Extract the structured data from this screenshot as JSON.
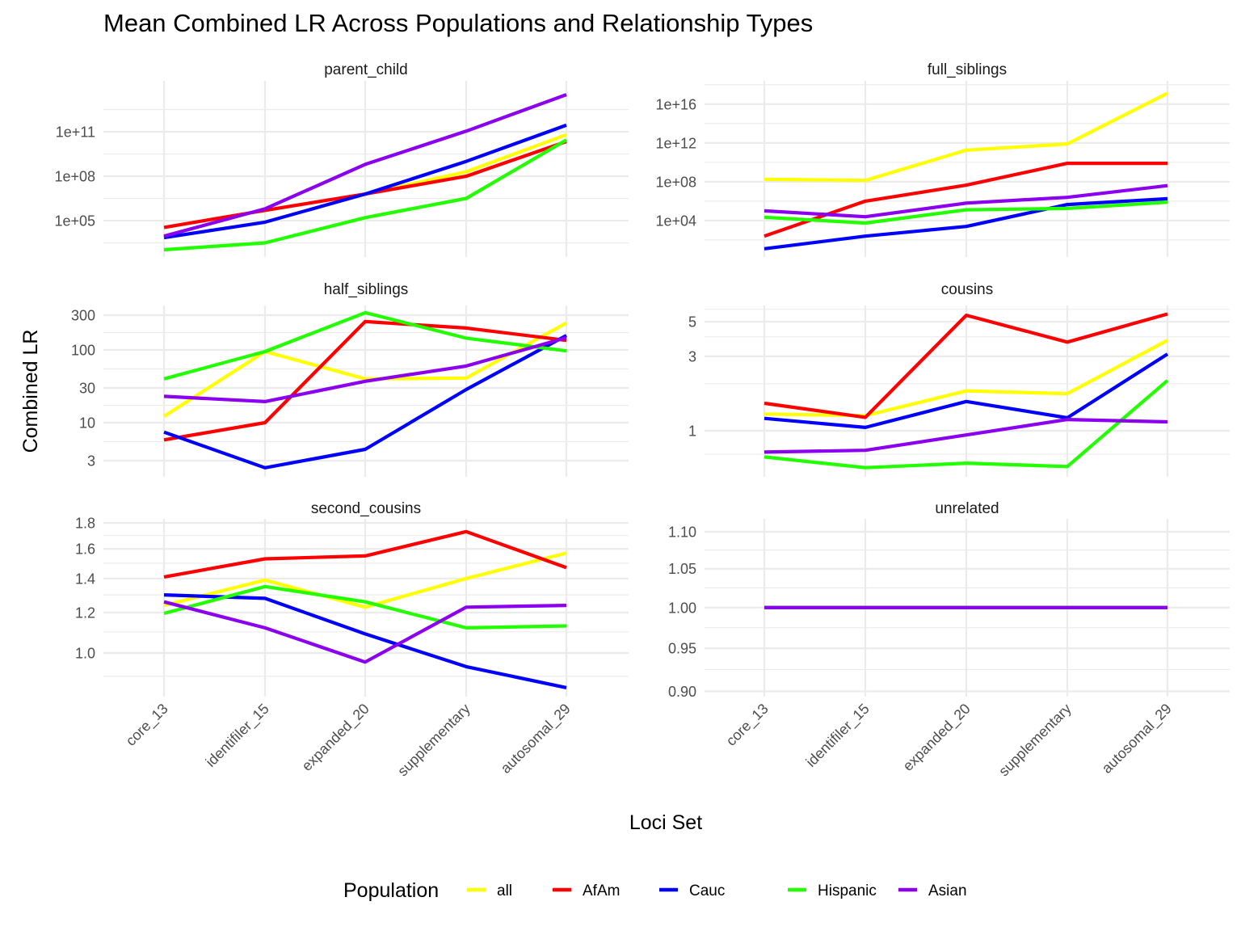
{
  "chart_data": {
    "type": "line",
    "title": "Mean Combined LR Across Populations and Relationship Types",
    "xlabel": "Loci Set",
    "ylabel": "Combined LR",
    "y_scale": "log10",
    "grid": true,
    "legend": {
      "title": "Population",
      "placement": "bottom",
      "entries": [
        "all",
        "AfAm",
        "Cauc",
        "Hispanic",
        "Asian"
      ]
    },
    "categories": [
      "core_13",
      "identifiler_15",
      "expanded_20",
      "supplementary",
      "autosomal_29"
    ],
    "colors": {
      "all": "#ffff00",
      "AfAm": "#ff0000",
      "Cauc": "#0000ff",
      "Hispanic": "#22ff00",
      "Asian": "#8b00ee"
    },
    "panels": [
      {
        "name": "parent_child",
        "ylim": [
          355,
          275000000000000.0
        ],
        "y_ticks": [
          100000.0,
          100000000.0,
          100000000000.0
        ],
        "y_tick_labels": [
          "1e+05",
          "1e+08",
          "1e+11"
        ],
        "y_minor": [
          3160.0,
          3160000.0,
          3160000000.0,
          3160000000000.0
        ],
        "series": [
          {
            "name": "all",
            "values": [
              7100.0,
              80000.0,
              6300000.0,
              200000000.0,
              63000000000.0
            ]
          },
          {
            "name": "AfAm",
            "values": [
              35000.0,
              500000.0,
              6300000.0,
              100000000.0,
              22000000000.0
            ]
          },
          {
            "name": "Cauc",
            "values": [
              7100.0,
              80000.0,
              6300000.0,
              1000000000.0,
              280000000000.0
            ]
          },
          {
            "name": "Hispanic",
            "values": [
              1100.0,
              3200.0,
              160000.0,
              3200000.0,
              28000000000.0
            ]
          },
          {
            "name": "Asian",
            "values": [
              9100.0,
              630000.0,
              630000000.0,
              110000000000.0,
              32000000000000.0
            ]
          }
        ]
      },
      {
        "name": "full_siblings",
        "ylim": [
          1.78,
          2.5e+18
        ],
        "y_ticks": [
          10000.0,
          100000000.0,
          1000000000000.0,
          1e+16
        ],
        "y_tick_labels": [
          "1e+04",
          "1e+08",
          "1e+12",
          "1e+16"
        ],
        "y_minor": [
          100.0,
          1000000.0,
          10000000000.0,
          100000000000000.0,
          1e+18
        ],
        "series": [
          {
            "name": "all",
            "values": [
              180000000.0,
              140000000.0,
              180000000000.0,
              790000000000.0,
              1.3e+17
            ]
          },
          {
            "name": "AfAm",
            "values": [
              250.0,
              1000000.0,
              45000000.0,
              7900000000.0,
              7900000000.0
            ]
          },
          {
            "name": "Cauc",
            "values": [
              12.6,
              250.0,
              2500.0,
              450000.0,
              1800000.0
            ]
          },
          {
            "name": "Hispanic",
            "values": [
              22000.0,
              5600.0,
              130000.0,
              180000.0,
              790000.0
            ]
          },
          {
            "name": "Asian",
            "values": [
              100000.0,
              25000.0,
              630000.0,
              2500000.0,
              40000000.0
            ]
          }
        ]
      },
      {
        "name": "half_siblings",
        "ylim": [
          1.8,
          408
        ],
        "y_ticks": [
          3,
          10,
          30,
          100,
          300
        ],
        "y_tick_labels": [
          "3",
          "10",
          "30",
          "100",
          "300"
        ],
        "y_minor": [
          5.48,
          17.3,
          54.8,
          173
        ],
        "series": [
          {
            "name": "all",
            "values": [
              12.2,
              95,
              40,
              41,
              235
            ]
          },
          {
            "name": "AfAm",
            "values": [
              5.8,
              10,
              245,
              200,
              135
            ]
          },
          {
            "name": "Cauc",
            "values": [
              7.4,
              2.4,
              4.3,
              28.5,
              158
            ]
          },
          {
            "name": "Hispanic",
            "values": [
              40,
              95,
              325,
              145,
              97
            ]
          },
          {
            "name": "Asian",
            "values": [
              23,
              19.5,
              37,
              60,
              147
            ]
          }
        ]
      },
      {
        "name": "cousins",
        "ylim": [
          0.507,
          6.35
        ],
        "y_ticks": [
          1,
          3,
          5
        ],
        "y_tick_labels": [
          "1",
          "3",
          "5"
        ],
        "y_minor": [
          0.707,
          2,
          4,
          6
        ],
        "series": [
          {
            "name": "all",
            "values": [
              1.28,
              1.25,
              1.8,
              1.73,
              3.8
            ]
          },
          {
            "name": "AfAm",
            "values": [
              1.5,
              1.22,
              5.5,
              3.7,
              5.6
            ]
          },
          {
            "name": "Cauc",
            "values": [
              1.2,
              1.05,
              1.54,
              1.21,
              3.1
            ]
          },
          {
            "name": "Hispanic",
            "values": [
              0.68,
              0.58,
              0.62,
              0.59,
              2.1
            ]
          },
          {
            "name": "Asian",
            "values": [
              0.73,
              0.75,
              0.94,
              1.18,
              1.14
            ]
          }
        ]
      },
      {
        "name": "second_cousins",
        "ylim": [
          0.821,
          1.833
        ],
        "y_ticks": [
          1.0,
          1.2,
          1.4,
          1.6,
          1.8
        ],
        "y_tick_labels": [
          "1.0",
          "1.2",
          "1.4",
          "1.6",
          "1.8"
        ],
        "y_minor": [
          0.9,
          1.1,
          1.3,
          1.5,
          1.7
        ],
        "series": [
          {
            "name": "all",
            "values": [
              1.24,
              1.39,
              1.23,
              1.4,
              1.57
            ]
          },
          {
            "name": "AfAm",
            "values": [
              1.41,
              1.53,
              1.55,
              1.73,
              1.47
            ]
          },
          {
            "name": "Cauc",
            "values": [
              1.3,
              1.28,
              1.09,
              0.94,
              0.855
            ]
          },
          {
            "name": "Hispanic",
            "values": [
              1.196,
              1.35,
              1.26,
              1.12,
              1.13
            ]
          },
          {
            "name": "Asian",
            "values": [
              1.26,
              1.12,
              0.96,
              1.23,
              1.24
            ]
          }
        ]
      },
      {
        "name": "unrelated",
        "ylim": [
          0.894,
          1.118
        ],
        "y_ticks": [
          0.9,
          0.95,
          1.0,
          1.05,
          1.1
        ],
        "y_tick_labels": [
          "0.90",
          "0.95",
          "1.00",
          "1.05",
          "1.10"
        ],
        "y_minor": [
          0.925,
          0.975,
          1.025,
          1.075
        ],
        "series": [
          {
            "name": "all",
            "values": [
              1,
              1,
              1,
              1,
              1
            ]
          },
          {
            "name": "AfAm",
            "values": [
              1,
              1,
              1,
              1,
              1
            ]
          },
          {
            "name": "Cauc",
            "values": [
              1,
              1,
              1,
              1,
              1
            ]
          },
          {
            "name": "Hispanic",
            "values": [
              1,
              1,
              1,
              1,
              1
            ]
          },
          {
            "name": "Asian",
            "values": [
              1,
              1,
              1,
              1,
              1
            ]
          }
        ]
      }
    ]
  }
}
